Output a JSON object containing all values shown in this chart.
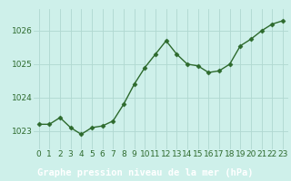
{
  "x": [
    0,
    1,
    2,
    3,
    4,
    5,
    6,
    7,
    8,
    9,
    10,
    11,
    12,
    13,
    14,
    15,
    16,
    17,
    18,
    19,
    20,
    21,
    22,
    23
  ],
  "y": [
    1023.2,
    1023.2,
    1023.4,
    1023.1,
    1022.9,
    1023.1,
    1023.15,
    1023.3,
    1023.8,
    1024.4,
    1024.9,
    1025.3,
    1025.7,
    1025.3,
    1025.0,
    1024.95,
    1024.75,
    1024.8,
    1025.0,
    1025.55,
    1025.75,
    1026.0,
    1026.2,
    1026.3
  ],
  "line_color": "#2d6a2d",
  "marker": "D",
  "markersize": 2.5,
  "linewidth": 1.0,
  "plot_bg_color": "#cef0ea",
  "bottom_bar_color": "#2d6a2d",
  "grid_color": "#b0d8d0",
  "xlabel": "Graphe pression niveau de la mer (hPa)",
  "xlabel_fontsize": 7.5,
  "xlabel_color": "#ffffff",
  "ylabel_ticks": [
    1023,
    1024,
    1025,
    1026
  ],
  "ylim": [
    1022.45,
    1026.65
  ],
  "xlim": [
    -0.5,
    23.5
  ],
  "tick_fontsize": 6.5,
  "tick_color": "#2d6a2d",
  "xtick_labels": [
    "0",
    "1",
    "2",
    "3",
    "4",
    "5",
    "6",
    "7",
    "8",
    "9",
    "10",
    "11",
    "12",
    "13",
    "14",
    "15",
    "16",
    "17",
    "18",
    "19",
    "20",
    "21",
    "22",
    "23"
  ]
}
